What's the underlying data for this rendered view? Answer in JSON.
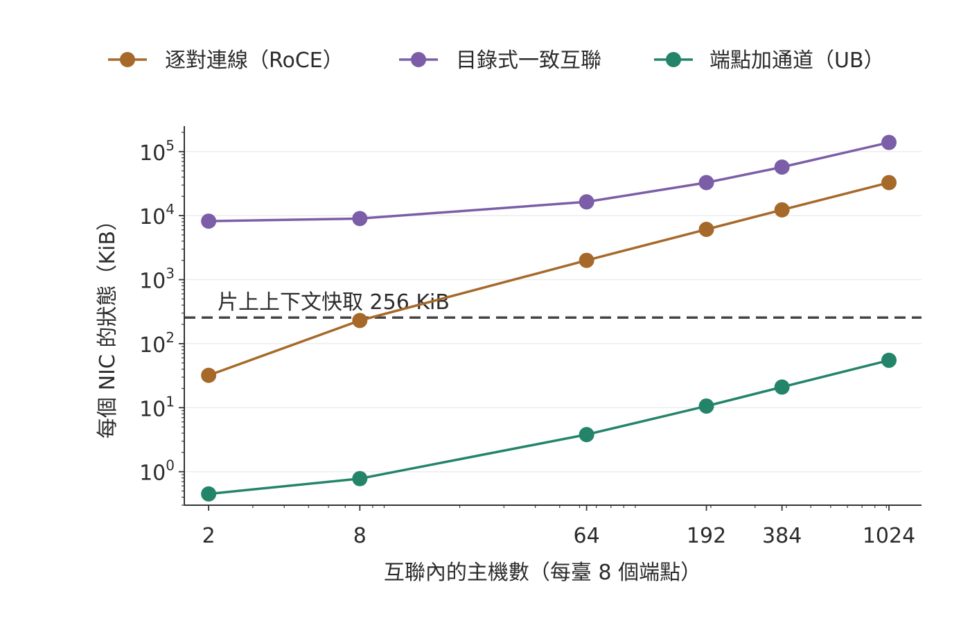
{
  "chart_data": {
    "type": "line",
    "xlabel": "互聯內的主機數（每臺 8 個端點）",
    "ylabel": "每個 NIC 的狀態（KiB）",
    "xscale": "log",
    "yscale": "log",
    "xlim": [
      1.6,
      1380
    ],
    "ylim": [
      0.3,
      250000
    ],
    "x": [
      2,
      8,
      64,
      192,
      384,
      1024
    ],
    "x_tick_labels": [
      "2",
      "8",
      "64",
      "192",
      "384",
      "1024"
    ],
    "y_ticks": [
      1,
      10,
      100,
      1000,
      10000,
      100000
    ],
    "y_tick_labels": [
      {
        "base": "10",
        "exp": "0"
      },
      {
        "base": "10",
        "exp": "1"
      },
      {
        "base": "10",
        "exp": "2"
      },
      {
        "base": "10",
        "exp": "3"
      },
      {
        "base": "10",
        "exp": "4"
      },
      {
        "base": "10",
        "exp": "5"
      }
    ],
    "grid": "horizontal",
    "legend_position": "top",
    "series": [
      {
        "name": "逐對連線（RoCE）",
        "color": "#a6692a",
        "values": [
          32,
          230,
          2000,
          6100,
          12300,
          32800
        ]
      },
      {
        "name": "目錄式一致互聯",
        "color": "#7b5ea7",
        "values": [
          8200,
          9000,
          16400,
          32800,
          57300,
          139000
        ]
      },
      {
        "name": "端點加通道（UB）",
        "color": "#23846a",
        "values": [
          0.45,
          0.78,
          3.8,
          10.6,
          21,
          55
        ]
      }
    ],
    "reference_line": {
      "value": 256,
      "label": "片上上下文快取 256 KiB",
      "style": "dashed",
      "color": "#444444"
    }
  }
}
